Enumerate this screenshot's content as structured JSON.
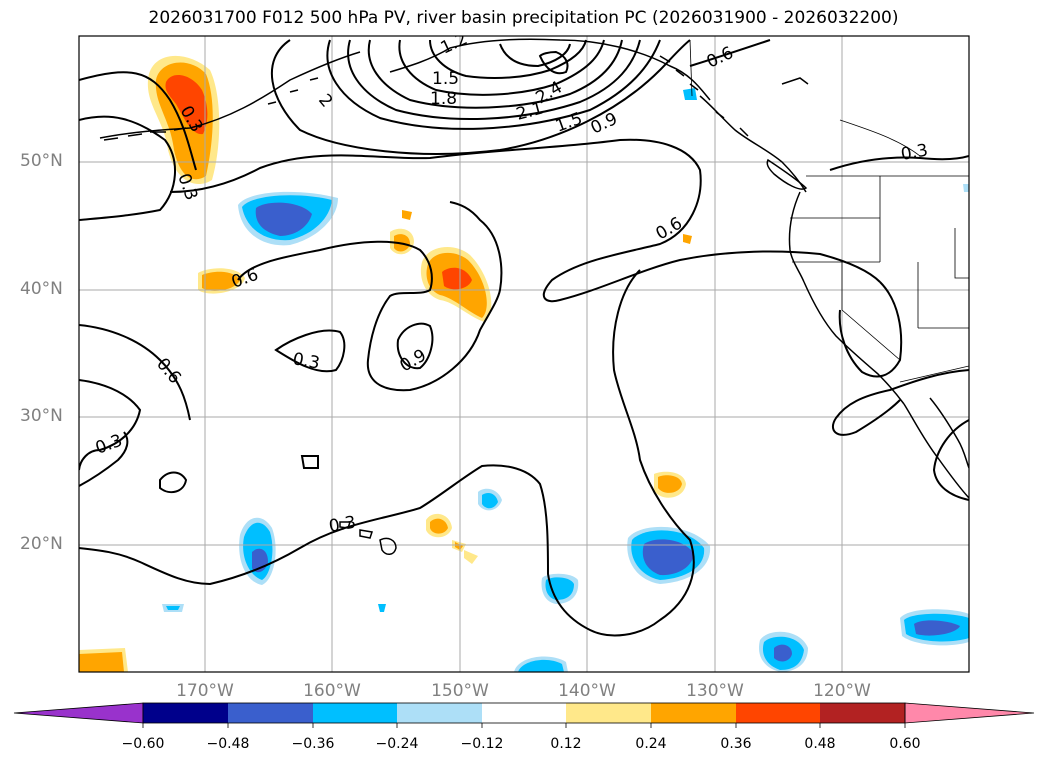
{
  "title": "2026031700 F012 500 hPa PV, river basin precipitation PC (2026031900 - 2026032200)",
  "lat_labels": [
    "50°N",
    "40°N",
    "30°N",
    "20°N"
  ],
  "lon_labels": [
    "170°W",
    "160°W",
    "150°W",
    "140°W",
    "130°W",
    "120°W"
  ],
  "contour_labels": [
    "1.2",
    "1.5",
    "1.8",
    "2.1",
    "2.4",
    "1.5",
    "0.9",
    "0.6",
    "0.3",
    "0.3",
    "2",
    "0.6",
    "0.6",
    "0.6",
    "0.3",
    "0.9",
    "0.3",
    "0.3",
    "0.3",
    "0.6"
  ],
  "colorbar": {
    "ticks": [
      "−0.60",
      "−0.48",
      "−0.36",
      "−0.24",
      "−0.12",
      "0.12",
      "0.24",
      "0.36",
      "0.48",
      "0.60"
    ],
    "colors": {
      "under": "#9932CC",
      "neg060": "#00008B",
      "neg048": "#3A5FCD",
      "neg036": "#00BFFF",
      "neg024": "#ADDFF7",
      "neutral": "#FFFFFF",
      "pos012": "#FFE88A",
      "pos024": "#FFA500",
      "pos036": "#FF4500",
      "pos048": "#B22222",
      "over": "#FF88AA"
    }
  }
}
